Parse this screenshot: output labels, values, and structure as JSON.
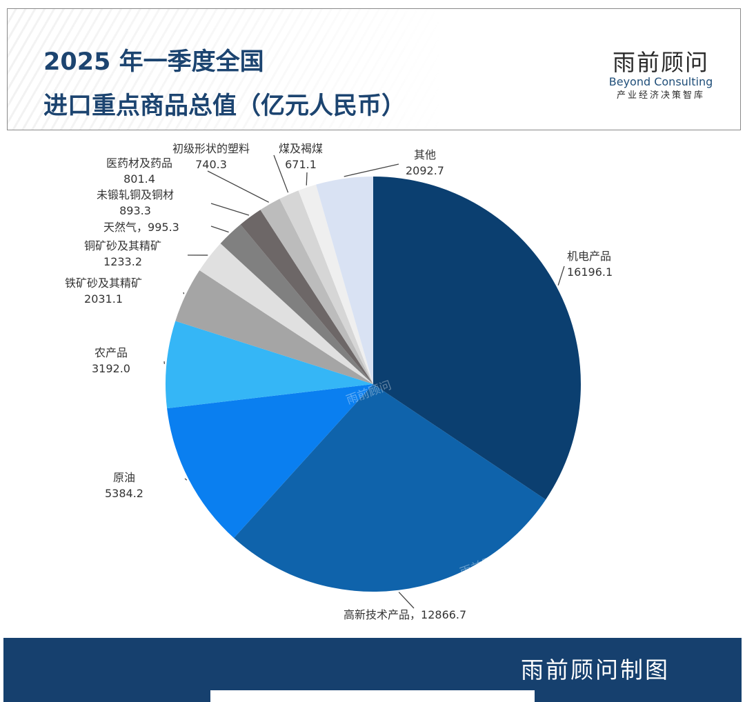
{
  "header": {
    "title_line1": "2025 年一季度全国",
    "title_line2": "进口重点商品总值（亿元人民币）",
    "logo_cn": "雨前顾问",
    "logo_en": "Beyond Consulting",
    "logo_sub": "产业经济决策智库"
  },
  "watermark": "雨前顾问",
  "footer": {
    "text": "雨前顾问制图"
  },
  "chart_data": {
    "type": "pie",
    "title": "2025 年一季度全国进口重点商品总值（亿元人民币）",
    "start_angle": "12 o'clock",
    "direction": "clockwise",
    "slices": [
      {
        "label": "机电产品",
        "value": 16196.1,
        "value_text": "16196.1",
        "color": "#0b3f70"
      },
      {
        "label": "高新技术产品",
        "value": 12866.7,
        "value_text": "12866.7",
        "color": "#0f63ab"
      },
      {
        "label": "原油",
        "value": 5384.2,
        "value_text": "5384.2",
        "color": "#0a7ff0"
      },
      {
        "label": "农产品",
        "value": 3192.0,
        "value_text": "3192.0",
        "color": "#35b6f6"
      },
      {
        "label": "铁矿砂及其精矿",
        "value": 2031.1,
        "value_text": "2031.1",
        "color": "#a5a5a5"
      },
      {
        "label": "铜矿砂及其精矿",
        "value": 1233.2,
        "value_text": "1233.2",
        "color": "#e0e0e0"
      },
      {
        "label": "天然气",
        "value": 995.3,
        "value_text": "995.3",
        "color": "#808080"
      },
      {
        "label": "未锻轧铜及铜材",
        "value": 893.3,
        "value_text": "893.3",
        "color": "#6d6767"
      },
      {
        "label": "医药材及药品",
        "value": 801.4,
        "value_text": "801.4",
        "color": "#bcbcbc"
      },
      {
        "label": "初级形状的塑料",
        "value": 740.3,
        "value_text": "740.3",
        "color": "#d6d6d6"
      },
      {
        "label": "煤及褐煤",
        "value": 671.1,
        "value_text": "671.1",
        "color": "#efefef"
      },
      {
        "label": "其他",
        "value": 2092.7,
        "value_text": "2092.7",
        "color": "#d9e2f3"
      }
    ]
  }
}
